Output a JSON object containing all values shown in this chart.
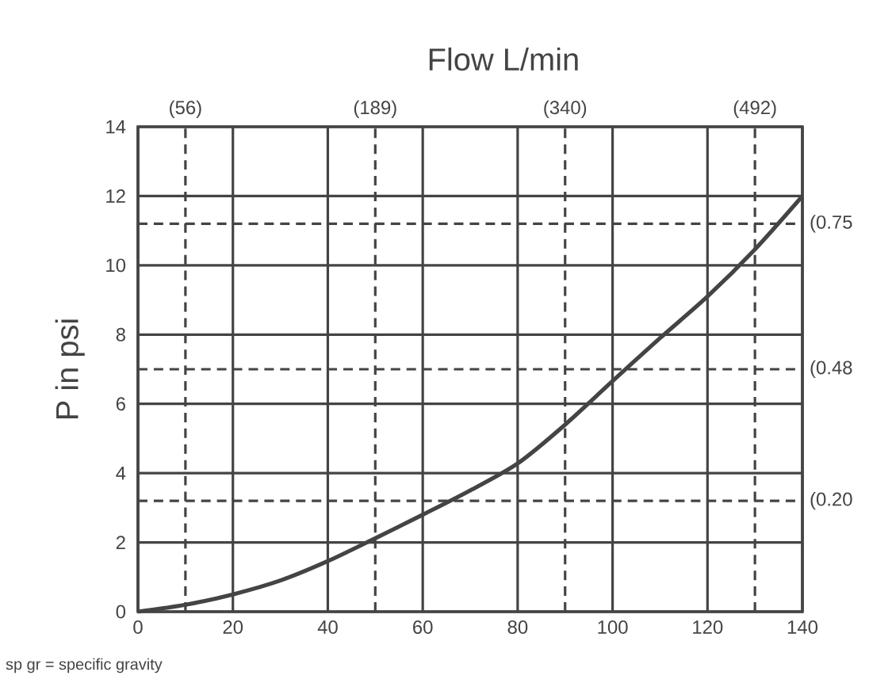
{
  "chart_data": {
    "type": "line",
    "title": "Flow L/min",
    "ylabel": "P in psi",
    "x": [
      0,
      10,
      20,
      30,
      40,
      50,
      60,
      70,
      80,
      90,
      100,
      110,
      120,
      130,
      140
    ],
    "series": [
      {
        "color": "#444444",
        "values": [
          0,
          0.2,
          0.5,
          0.9,
          1.46,
          2.12,
          2.8,
          3.5,
          4.28,
          5.4,
          6.66,
          7.9,
          9.1,
          10.46,
          12
        ]
      }
    ],
    "xlim": [
      0,
      140
    ],
    "ylim": [
      0,
      14
    ],
    "xticks": [
      0,
      20,
      40,
      60,
      80,
      100,
      120,
      140
    ],
    "yticks": [
      0,
      2,
      4,
      6,
      8,
      10,
      12,
      14
    ],
    "grid": true,
    "marker": "none",
    "line_style": "solid",
    "ref_lines": [
      {
        "axis": "x",
        "value": 10,
        "color": "#444444",
        "line_style": "dashed"
      },
      {
        "axis": "x",
        "value": 50,
        "color": "#444444",
        "line_style": "dashed"
      },
      {
        "axis": "x",
        "value": 90,
        "color": "#444444",
        "line_style": "dashed"
      },
      {
        "axis": "x",
        "value": 130,
        "color": "#444444",
        "line_style": "dashed"
      },
      {
        "axis": "y",
        "value": 11.2,
        "color": "#444444",
        "line_style": "dashed"
      },
      {
        "axis": "y",
        "value": 7,
        "color": "#444444",
        "line_style": "dashed"
      },
      {
        "axis": "y",
        "value": 3.2,
        "color": "#444444",
        "line_style": "dashed"
      }
    ],
    "annotations": [
      {
        "text": "(56)",
        "x": 10,
        "y": 14
      },
      {
        "text": "(189)",
        "x": 50,
        "y": 14
      },
      {
        "text": "(340)",
        "x": 90,
        "y": 14
      },
      {
        "text": "(492)",
        "x": 130,
        "y": 14
      },
      {
        "text": "(0.75",
        "x": 140,
        "y": 11.2
      },
      {
        "text": "(0.48",
        "x": 140,
        "y": 7
      },
      {
        "text": "(0.20",
        "x": 140,
        "y": 3.2
      },
      "sp gr = specific gravity"
    ]
  }
}
